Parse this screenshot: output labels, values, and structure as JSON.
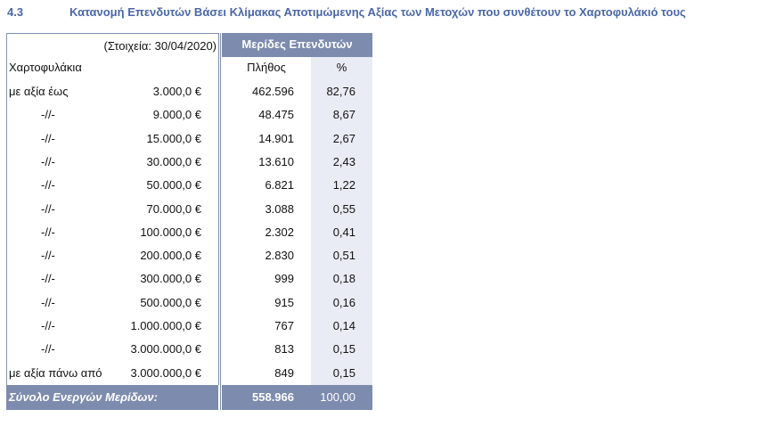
{
  "header": {
    "number": "4.3",
    "title": "Κατανομή Επενδυτών Βάσει Κλίμακας Αποτιμώμενης Αξίας των Μετοχών που συνθέτουν το Χαρτοφυλάκιό τους"
  },
  "table": {
    "note": "(Στοιχεία: 30/04/2020)",
    "group_header": "Μερίδες Επενδυτών",
    "row_header": "Χαρτοφυλάκια",
    "columns": [
      "Πλήθος",
      "%"
    ],
    "rows": [
      [
        "με αξία έως",
        "3.000,0 €",
        "462.596",
        "82,76"
      ],
      [
        "-//-",
        "9.000,0 €",
        "48.475",
        "8,67"
      ],
      [
        "-//-",
        "15.000,0 €",
        "14.901",
        "2,67"
      ],
      [
        "-//-",
        "30.000,0 €",
        "13.610",
        "2,43"
      ],
      [
        "-//-",
        "50.000,0 €",
        "6.821",
        "1,22"
      ],
      [
        "-//-",
        "70.000,0 €",
        "3.088",
        "0,55"
      ],
      [
        "-//-",
        "100.000,0 €",
        "2.302",
        "0,41"
      ],
      [
        "-//-",
        "200.000,0 €",
        "2.830",
        "0,51"
      ],
      [
        "-//-",
        "300.000,0 €",
        "999",
        "0,18"
      ],
      [
        "-//-",
        "500.000,0 €",
        "915",
        "0,16"
      ],
      [
        "-//-",
        "1.000.000,0 €",
        "767",
        "0,14"
      ],
      [
        "-//-",
        "3.000.000,0 €",
        "813",
        "0,15"
      ],
      [
        "με αξία πάνω από",
        "3.000.000,0 €",
        "849",
        "0,15"
      ]
    ],
    "total": [
      "Σύνολο Ενεργών Μερίδων:",
      "558.966",
      "100,00"
    ]
  }
}
